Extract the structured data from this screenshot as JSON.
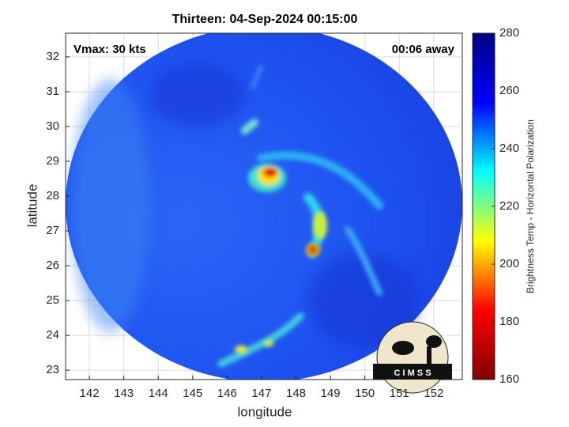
{
  "chart_data": {
    "type": "image",
    "title": "Thirteen: 04-Sep-2024 00:15:00",
    "xlabel": "longitude",
    "ylabel": "latitude",
    "annotations": [
      "Vmax: 30 kts",
      "00:06 away"
    ],
    "logo": "C I M S S",
    "xlim": [
      141.31,
      152.83
    ],
    "ylim": [
      22.73,
      32.68
    ],
    "xticks": [
      142,
      143,
      144,
      145,
      146,
      147,
      148,
      149,
      150,
      151,
      152
    ],
    "yticks": [
      23,
      24,
      25,
      26,
      27,
      28,
      29,
      30,
      31,
      32
    ],
    "grid": true,
    "colorbar": {
      "label": "Brightness Temp - Horizontal Polarization",
      "lim": [
        160,
        280
      ],
      "ticks": [
        160,
        180,
        200,
        220,
        240,
        260,
        280
      ],
      "colors": [
        "#800000",
        "#ff0000",
        "#ffff00",
        "#00ffff",
        "#0000ff",
        "#000080"
      ]
    }
  }
}
